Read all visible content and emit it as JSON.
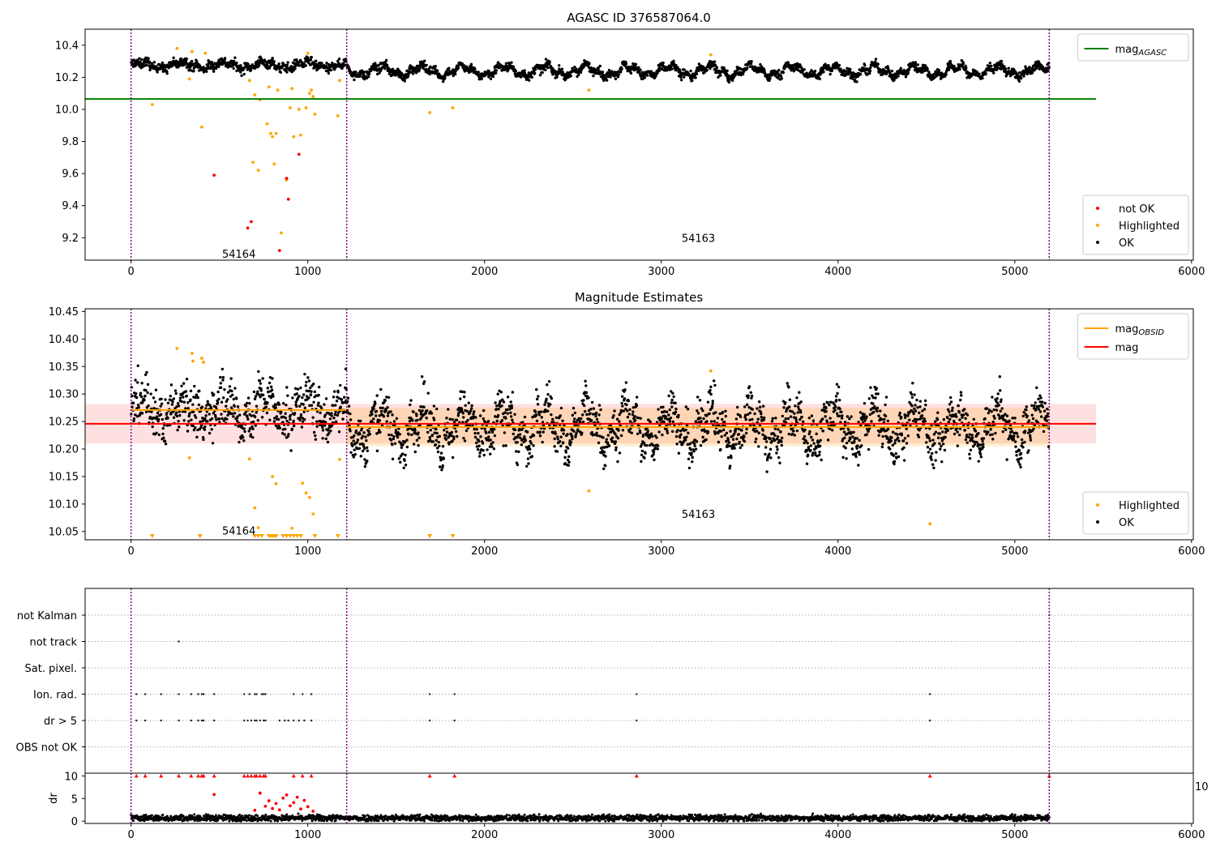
{
  "chart_data": [
    {
      "type": "scatter",
      "title": "AGASC ID 376587064.0",
      "xlim": [
        -260,
        6010
      ],
      "ylim": [
        9.06,
        10.5
      ],
      "xticks": [
        0,
        1000,
        2000,
        3000,
        4000,
        5000,
        6000
      ],
      "yticks": [
        9.2,
        9.4,
        9.6,
        9.8,
        10.0,
        10.2,
        10.4
      ],
      "grid": false,
      "legend_lines": {
        "position": "upper-right",
        "entries": [
          {
            "label": "mag",
            "sub": "AGASC",
            "color": "#008000"
          }
        ]
      },
      "legend_points": {
        "position": "lower-right",
        "entries": [
          {
            "label": "not OK",
            "color": "#ff0000"
          },
          {
            "label": "Highlighted",
            "color": "#ffa500"
          },
          {
            "label": "OK",
            "color": "#000000"
          }
        ]
      },
      "hlines": [
        {
          "y": 10.065,
          "x0": -260,
          "x1": 5460,
          "color": "#008000"
        }
      ],
      "obsid_boundaries": [
        0,
        1220,
        5195
      ],
      "obsid_labels": [
        {
          "text": "54164",
          "x": 610,
          "y": 9.1
        },
        {
          "text": "54163",
          "x": 3210,
          "y": 9.2
        }
      ],
      "ok_series": {
        "color": "#000000",
        "segments": [
          {
            "x0": 0,
            "x1": 1220,
            "mean": 10.275,
            "amp": 0.018,
            "noise": 0.015,
            "n": 600
          },
          {
            "x0": 1220,
            "x1": 5195,
            "mean": 10.24,
            "amp": 0.028,
            "noise": 0.013,
            "n": 2000
          }
        ]
      },
      "highlighted": {
        "color": "#ffa500",
        "x": [
          120,
          260,
          330,
          345,
          400,
          420,
          670,
          690,
          700,
          720,
          730,
          770,
          780,
          790,
          800,
          810,
          820,
          830,
          850,
          880,
          900,
          910,
          920,
          950,
          960,
          990,
          1000,
          1010,
          1020,
          1030,
          1040,
          1170,
          1180,
          1690,
          1820,
          2590,
          3280
        ],
        "y": [
          10.03,
          10.38,
          10.19,
          10.36,
          9.89,
          10.35,
          10.18,
          9.67,
          10.09,
          9.62,
          10.06,
          9.91,
          10.14,
          9.85,
          9.83,
          9.66,
          9.85,
          10.12,
          9.23,
          9.56,
          10.01,
          10.13,
          9.83,
          10.0,
          9.84,
          10.01,
          10.35,
          10.1,
          10.12,
          10.08,
          9.97,
          9.96,
          10.18,
          9.98,
          10.01,
          10.12,
          10.34
        ]
      },
      "not_ok": {
        "color": "#ff0000",
        "x": [
          470,
          660,
          680,
          840,
          880,
          890,
          950
        ],
        "y": [
          9.59,
          9.26,
          9.3,
          9.12,
          9.57,
          9.44,
          9.72
        ]
      }
    },
    {
      "type": "scatter",
      "title": "Magnitude Estimates",
      "xlim": [
        -260,
        6010
      ],
      "ylim": [
        10.035,
        10.455
      ],
      "xticks": [
        0,
        1000,
        2000,
        3000,
        4000,
        5000,
        6000
      ],
      "yticks": [
        10.05,
        10.1,
        10.15,
        10.2,
        10.25,
        10.3,
        10.35,
        10.4,
        10.45
      ],
      "grid": false,
      "legend_lines": {
        "position": "upper-right",
        "entries": [
          {
            "label": "mag",
            "sub": "OBSID",
            "color": "#ffa500"
          },
          {
            "label": "mag",
            "sub": "",
            "color": "#ff0000"
          }
        ]
      },
      "legend_points": {
        "position": "lower-right",
        "entries": [
          {
            "label": "Highlighted",
            "color": "#ffa500"
          },
          {
            "label": "OK",
            "color": "#000000"
          }
        ]
      },
      "bands": [
        {
          "y0": 10.21,
          "y1": 10.282,
          "x0": -260,
          "x1": 5460,
          "color": "#ff0000",
          "opacity": 0.12
        },
        {
          "y0": 10.205,
          "y1": 10.275,
          "x0": 1220,
          "x1": 5195,
          "color": "#ffa500",
          "opacity": 0.18
        }
      ],
      "hlines": [
        {
          "y": 10.271,
          "x0": 0,
          "x1": 1220,
          "color": "#ffa500"
        },
        {
          "y": 10.24,
          "x0": 1220,
          "x1": 5195,
          "color": "#ffa500"
        },
        {
          "y": 10.246,
          "x0": -260,
          "x1": 5460,
          "color": "#ff0000"
        }
      ],
      "obsid_boundaries": [
        0,
        1220,
        5195
      ],
      "obsid_labels": [
        {
          "text": "54164",
          "x": 610,
          "y": 10.052
        },
        {
          "text": "54163",
          "x": 3210,
          "y": 10.082
        }
      ],
      "ok_series": {
        "color": "#000000",
        "segments": [
          {
            "x0": 0,
            "x1": 1220,
            "mean": 10.272,
            "amp": 0.02,
            "noise": 0.022,
            "n": 600
          },
          {
            "x0": 1220,
            "x1": 5195,
            "mean": 10.24,
            "amp": 0.03,
            "noise": 0.02,
            "n": 2000
          }
        ]
      },
      "highlighted": {
        "color": "#ffa500",
        "x": [
          260,
          330,
          345,
          350,
          400,
          410,
          670,
          700,
          720,
          800,
          820,
          910,
          970,
          990,
          1010,
          1030,
          1180,
          2590,
          3280,
          4520
        ],
        "y": [
          10.383,
          10.184,
          10.374,
          10.36,
          10.365,
          10.358,
          10.182,
          10.093,
          10.057,
          10.15,
          10.137,
          10.056,
          10.138,
          10.12,
          10.112,
          10.082,
          10.181,
          10.124,
          10.342,
          10.064
        ]
      },
      "clipped_markers": {
        "color": "#ffa500",
        "x": [
          120,
          390,
          700,
          720,
          740,
          780,
          790,
          800,
          810,
          820,
          860,
          880,
          900,
          920,
          940,
          960,
          1040,
          1170,
          1690,
          1820
        ]
      }
    },
    {
      "type": "scatter",
      "title": "",
      "xlim": [
        -260,
        6010
      ],
      "categories": [
        "not Kalman",
        "not track",
        "Sat. pixel.",
        "Ion. rad.",
        "dr > 5",
        "OBS not OK"
      ],
      "flags": {
        "not Kalman": [
          5195
        ],
        "not track": [
          270
        ],
        "Sat. pixel.": [],
        "Ion. rad.": [
          30,
          80,
          170,
          270,
          340,
          380,
          400,
          410,
          470,
          640,
          670,
          700,
          710,
          740,
          750,
          760,
          920,
          970,
          1020,
          1690,
          1830,
          2860,
          4520
        ],
        "dr > 5": [
          30,
          80,
          170,
          270,
          340,
          380,
          400,
          410,
          470,
          640,
          660,
          680,
          700,
          710,
          730,
          750,
          760,
          840,
          870,
          890,
          920,
          950,
          980,
          1020,
          1690,
          1830,
          2860,
          4520
        ],
        "OBS not OK": []
      },
      "obsid_boundaries": [
        0,
        1220,
        5195
      ]
    },
    {
      "type": "scatter",
      "title": "",
      "xlim": [
        -260,
        6010
      ],
      "ylim": [
        -0.5,
        10.6
      ],
      "ylabel": "dr",
      "yticks": [
        0,
        5,
        10
      ],
      "xticks": [
        0,
        1000,
        2000,
        3000,
        4000,
        5000,
        6000
      ],
      "overflow_tick": "10",
      "clip_value": 10,
      "clipped_x": [
        30,
        80,
        170,
        270,
        340,
        380,
        400,
        410,
        470,
        640,
        660,
        680,
        700,
        710,
        730,
        750,
        760,
        920,
        970,
        1020,
        1690,
        1830,
        2860,
        4520,
        5195
      ],
      "outliers": {
        "color": "#ff0000",
        "x": [
          470,
          700,
          730,
          760,
          780,
          800,
          820,
          840,
          860,
          880,
          900,
          920,
          940,
          960,
          980,
          1000,
          1030
        ],
        "y": [
          5.9,
          2.4,
          6.2,
          3.3,
          4.5,
          2.8,
          3.9,
          2.5,
          5.1,
          5.8,
          3.4,
          4.1,
          5.3,
          2.7,
          4.6,
          3.2,
          2.2
        ]
      },
      "baseline": {
        "color": "#000000",
        "x0": 0,
        "x1": 5195,
        "n": 2600,
        "mean": 0.7,
        "noise": 0.35
      },
      "obsid_boundaries": [
        0,
        1220,
        5195
      ]
    }
  ]
}
